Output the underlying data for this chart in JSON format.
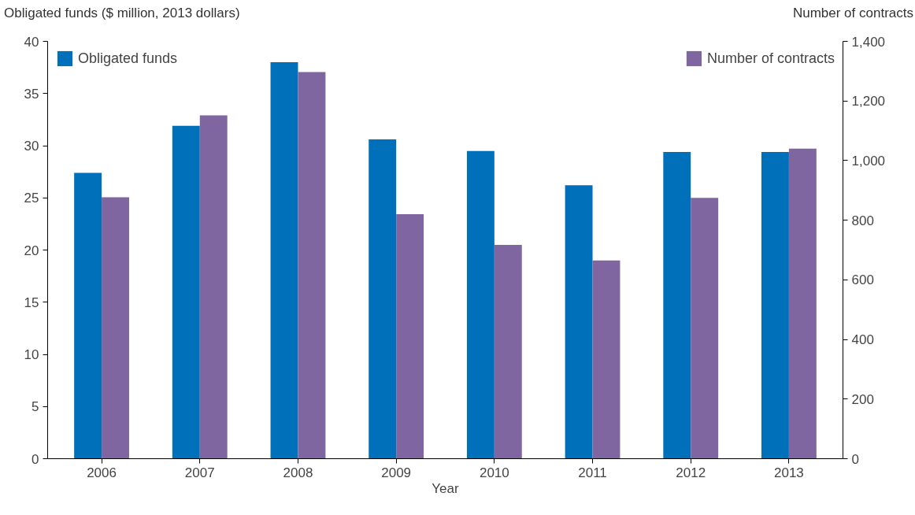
{
  "chart_data": {
    "type": "bar",
    "xlabel": "Year",
    "ylabel": "Obligated funds ($ million, 2013 dollars)",
    "y2label": "Number of contracts",
    "categories": [
      "2006",
      "2007",
      "2008",
      "2009",
      "2010",
      "2011",
      "2012",
      "2013"
    ],
    "series": [
      {
        "name": "Obligated funds",
        "color": "#0070bb",
        "values": [
          27.4,
          31.9,
          38.0,
          30.6,
          29.5,
          26.2,
          29.4,
          29.4
        ]
      },
      {
        "name": "Number of contracts",
        "color": "#8066a0",
        "axis": "y2",
        "values": [
          877,
          1152,
          1297,
          820,
          717,
          665,
          875,
          1040
        ]
      }
    ],
    "ylim": [
      0,
      40
    ],
    "yticks": [
      0,
      5,
      10,
      15,
      20,
      25,
      30,
      35,
      40
    ],
    "y2lim": [
      0,
      1400
    ],
    "y2ticks": [
      0,
      200,
      400,
      600,
      800,
      {
        "value": 1000,
        "label": "1,000"
      },
      {
        "value": 1200,
        "label": "1,200"
      },
      {
        "value": 1400,
        "label": "1,400"
      }
    ],
    "grid": false,
    "legend": "top"
  }
}
